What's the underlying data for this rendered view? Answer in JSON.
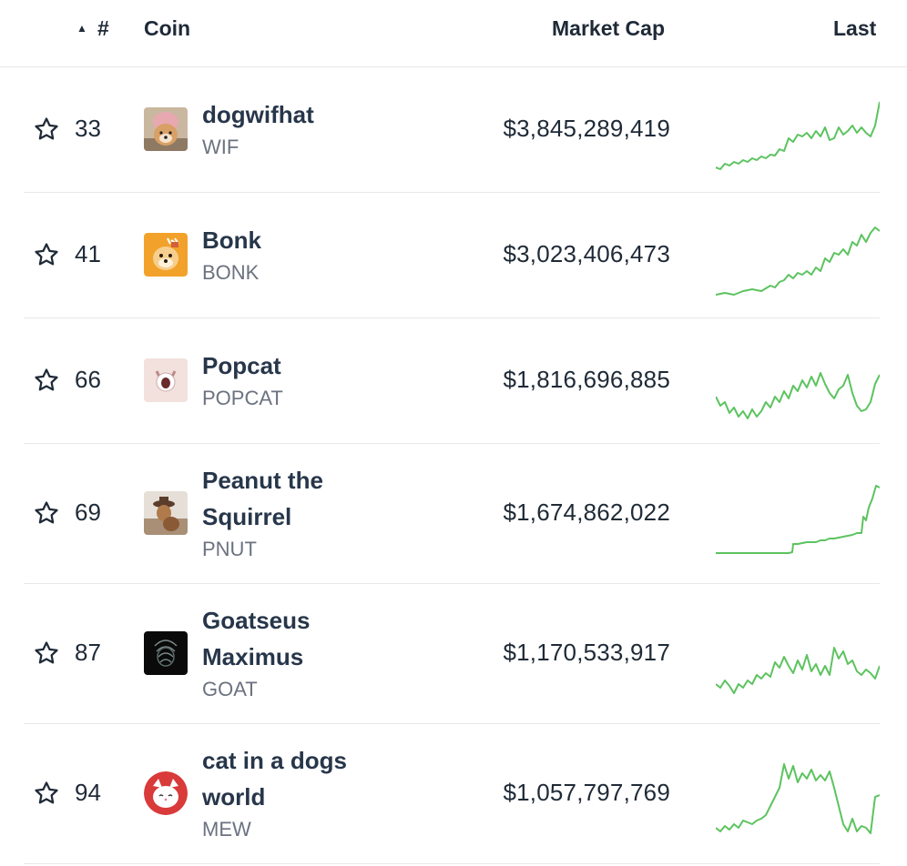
{
  "header": {
    "sort_indicator": "▲",
    "rank_label": "#",
    "coin_label": "Coin",
    "market_cap_label": "Market Cap",
    "last_label": "Last"
  },
  "colors": {
    "sparkline": "#5cc35f",
    "text": "#1f2a37",
    "muted": "#6b7280",
    "divider": "#e6e8eb"
  },
  "rows": [
    {
      "rank": "33",
      "name_lines": [
        "dogwifhat"
      ],
      "symbol": "WIF",
      "market_cap": "$3,845,289,419",
      "icon": "dog-with-hat-logo"
    },
    {
      "rank": "41",
      "name_lines": [
        "Bonk"
      ],
      "symbol": "BONK",
      "market_cap": "$3,023,406,473",
      "icon": "bonk-dog-logo"
    },
    {
      "rank": "66",
      "name_lines": [
        "Popcat"
      ],
      "symbol": "POPCAT",
      "market_cap": "$1,816,696,885",
      "icon": "popcat-logo"
    },
    {
      "rank": "69",
      "name_lines": [
        "Peanut the",
        "Squirrel"
      ],
      "symbol": "PNUT",
      "market_cap": "$1,674,862,022",
      "icon": "squirrel-logo"
    },
    {
      "rank": "87",
      "name_lines": [
        "Goatseus",
        "Maximus"
      ],
      "symbol": "GOAT",
      "market_cap": "$1,170,533,917",
      "icon": "goat-logo"
    },
    {
      "rank": "94",
      "name_lines": [
        "cat in a dogs",
        "world"
      ],
      "symbol": "MEW",
      "market_cap": "$1,057,797,769",
      "icon": "cat-logo"
    }
  ]
}
